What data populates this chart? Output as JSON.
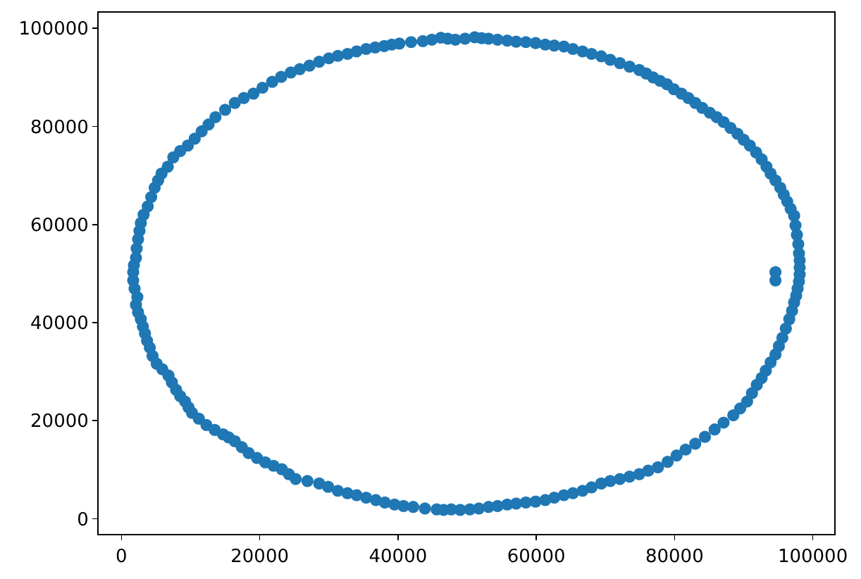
{
  "chart_data": {
    "type": "scatter",
    "series": [
      {
        "color": "#1f77b4",
        "x": [
          46200,
          44900,
          43600,
          41900,
          40200,
          39100,
          38000,
          36700,
          35400,
          34000,
          32700,
          31300,
          30000,
          28600,
          27200,
          25800,
          24500,
          23100,
          21800,
          20400,
          19100,
          17700,
          16400,
          15000,
          13600,
          12600,
          11600,
          10600,
          9600,
          8500,
          7500,
          6700,
          5800,
          5300,
          4800,
          4300,
          3800,
          3200,
          2800,
          2600,
          2400,
          2200,
          2100,
          1800,
          1700,
          1700,
          1900,
          2300,
          2100,
          2400,
          2800,
          3100,
          3400,
          3700,
          4100,
          4500,
          5100,
          5900,
          6800,
          7300,
          7900,
          8500,
          9200,
          9700,
          10200,
          11200,
          12300,
          13500,
          14700,
          15500,
          16400,
          17400,
          18400,
          19600,
          20800,
          22000,
          23200,
          24200,
          25200,
          26900,
          28600,
          29900,
          31300,
          32700,
          34000,
          35400,
          36800,
          38100,
          39500,
          40800,
          42200,
          43900,
          45600,
          46600,
          47700,
          49000,
          50400,
          51700,
          53100,
          54400,
          55800,
          57100,
          58500,
          59900,
          61300,
          62600,
          64000,
          65300,
          66700,
          68000,
          69400,
          70700,
          72100,
          73500,
          74900,
          76200,
          77600,
          79000,
          80300,
          81600,
          83000,
          84400,
          85800,
          87100,
          88500,
          89500,
          90500,
          91200,
          91900,
          92600,
          93200,
          93900,
          94600,
          95100,
          95600,
          96100,
          96600,
          97000,
          97300,
          97600,
          97800,
          98000,
          98100,
          98100,
          98100,
          98000,
          97900,
          97700,
          97500,
          97300,
          96800,
          96300,
          95800,
          95300,
          94600,
          93900,
          93300,
          92600,
          91800,
          90900,
          90000,
          89100,
          88100,
          87100,
          86100,
          85100,
          84000,
          83000,
          82000,
          81000,
          79900,
          78900,
          77900,
          76900,
          75900,
          74900,
          73500,
          72100,
          70700,
          69400,
          68000,
          66700,
          65300,
          64000,
          62600,
          61300,
          59900,
          58500,
          57100,
          55800,
          54400,
          53100,
          52100,
          51100,
          49700,
          48300,
          47200,
          94600,
          94600
        ],
        "values": [
          98100,
          97700,
          97400,
          97200,
          96900,
          96700,
          96400,
          96100,
          95800,
          95300,
          94800,
          94400,
          93900,
          93200,
          92400,
          91700,
          91000,
          90100,
          89100,
          87900,
          86700,
          85800,
          84800,
          83400,
          81900,
          80400,
          79000,
          77500,
          76100,
          75000,
          73700,
          71800,
          70400,
          69000,
          67500,
          65600,
          63700,
          62000,
          60300,
          58700,
          57000,
          55100,
          53200,
          51700,
          50300,
          48600,
          46900,
          45200,
          43600,
          42100,
          40700,
          39200,
          37800,
          36300,
          34900,
          33200,
          31600,
          30500,
          29200,
          27800,
          26300,
          25000,
          23900,
          22700,
          21600,
          20400,
          19100,
          18100,
          17200,
          16600,
          15800,
          14600,
          13400,
          12400,
          11500,
          10800,
          10100,
          9100,
          8100,
          7700,
          7200,
          6500,
          5700,
          5200,
          4800,
          4300,
          3800,
          3300,
          2900,
          2600,
          2400,
          2100,
          1900,
          1800,
          1900,
          1800,
          1900,
          2100,
          2400,
          2600,
          2900,
          3100,
          3300,
          3500,
          3800,
          4300,
          4800,
          5200,
          5700,
          6400,
          7200,
          7700,
          8100,
          8600,
          9100,
          9800,
          10500,
          11600,
          12900,
          14100,
          15300,
          16700,
          18200,
          19600,
          21100,
          22500,
          23900,
          25600,
          27300,
          28700,
          30200,
          31900,
          33500,
          35200,
          36900,
          38800,
          40700,
          42400,
          44100,
          45500,
          46900,
          48400,
          49800,
          51200,
          52700,
          54100,
          56000,
          57900,
          59800,
          61800,
          63200,
          64700,
          66100,
          67500,
          69000,
          70400,
          71800,
          73300,
          74700,
          76100,
          77300,
          78500,
          79700,
          80900,
          81900,
          82800,
          83800,
          84800,
          85800,
          86700,
          87600,
          88600,
          89300,
          90000,
          90800,
          91500,
          92200,
          92900,
          93600,
          94300,
          94800,
          95300,
          95800,
          96300,
          96500,
          96700,
          97000,
          97200,
          97300,
          97500,
          97700,
          97900,
          98000,
          98200,
          97900,
          97700,
          97900,
          50300,
          48600
        ]
      }
    ],
    "xlim": [
      -3300,
      103100
    ],
    "ylim": [
      -3100,
      103200
    ],
    "xticks": [
      0,
      20000,
      40000,
      60000,
      80000,
      100000
    ],
    "yticks": [
      0,
      20000,
      40000,
      60000,
      80000,
      100000
    ],
    "marker": "circle"
  }
}
